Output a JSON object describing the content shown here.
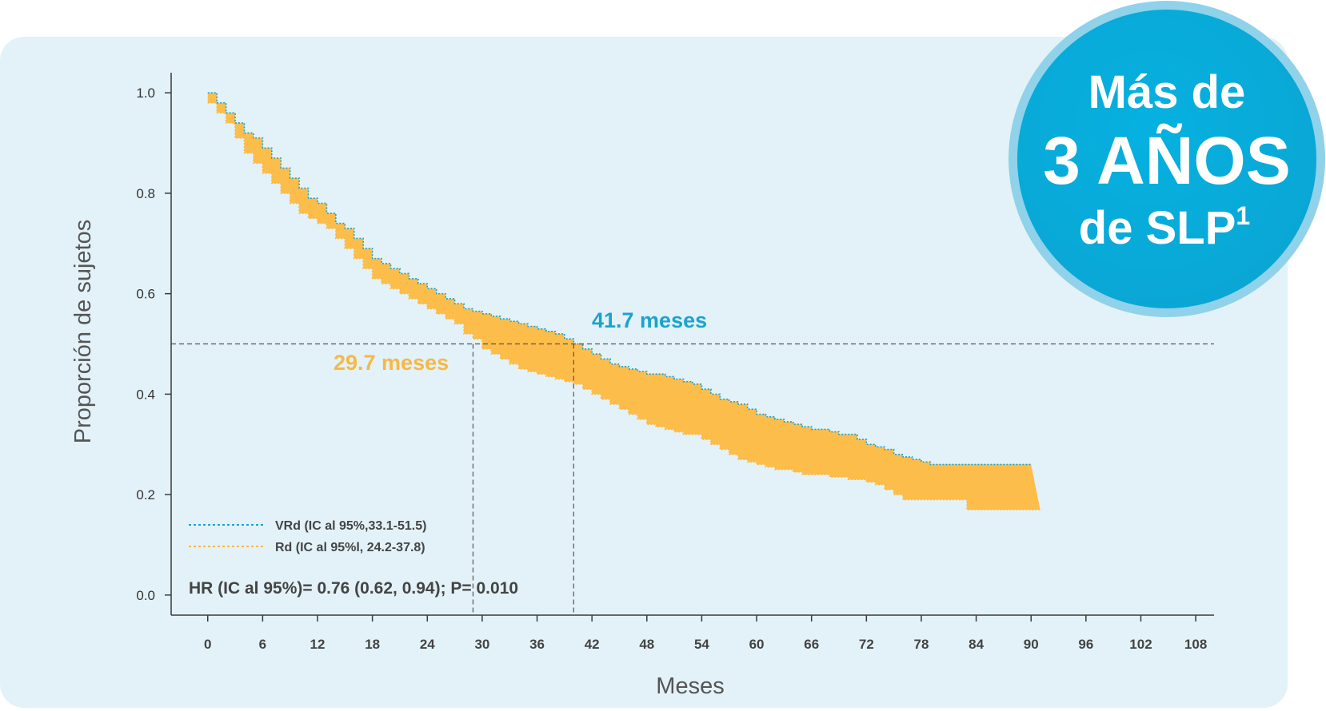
{
  "chart_data": {
    "type": "line",
    "title": "",
    "xlabel": "Meses",
    "ylabel": "Proporción de sujetos",
    "xlim": [
      -4,
      110
    ],
    "ylim": [
      -0.04,
      1.04
    ],
    "x_ticks": [
      0,
      6,
      12,
      18,
      24,
      30,
      36,
      42,
      48,
      54,
      60,
      66,
      72,
      78,
      84,
      90,
      96,
      102,
      108
    ],
    "y_ticks": [
      "0.0",
      "0.2",
      "0.4",
      "0.6",
      "0.8",
      "1.0"
    ],
    "series": [
      {
        "name": "VRd (IC al 95%,33.1-51.5)",
        "color": "#1aa3cf",
        "style": "dotted",
        "x": [
          0,
          1,
          2,
          3,
          4,
          5,
          6,
          7,
          8,
          9,
          10,
          11,
          12,
          13,
          14,
          15,
          16,
          17,
          18,
          19,
          20,
          21,
          22,
          23,
          24,
          25,
          26,
          27,
          28,
          29,
          30,
          31,
          32,
          33,
          34,
          35,
          36,
          37,
          38,
          39,
          40,
          41,
          42,
          43,
          44,
          45,
          46,
          47,
          48,
          49,
          50,
          51,
          52,
          53,
          54,
          55,
          56,
          57,
          58,
          59,
          60,
          61,
          62,
          63,
          64,
          65,
          66,
          67,
          68,
          69,
          70,
          71,
          72,
          73,
          74,
          75,
          76,
          77,
          78,
          79,
          80,
          81,
          82,
          83,
          84,
          85,
          86,
          87,
          88,
          89,
          90
        ],
        "y": [
          1.0,
          0.98,
          0.96,
          0.94,
          0.92,
          0.91,
          0.89,
          0.87,
          0.85,
          0.83,
          0.81,
          0.79,
          0.78,
          0.76,
          0.74,
          0.73,
          0.71,
          0.69,
          0.67,
          0.66,
          0.65,
          0.64,
          0.63,
          0.62,
          0.61,
          0.6,
          0.59,
          0.58,
          0.57,
          0.565,
          0.56,
          0.555,
          0.55,
          0.545,
          0.54,
          0.535,
          0.53,
          0.525,
          0.52,
          0.51,
          0.5,
          0.49,
          0.48,
          0.47,
          0.46,
          0.455,
          0.45,
          0.445,
          0.44,
          0.44,
          0.435,
          0.43,
          0.425,
          0.42,
          0.41,
          0.4,
          0.39,
          0.385,
          0.38,
          0.37,
          0.36,
          0.355,
          0.35,
          0.345,
          0.34,
          0.335,
          0.33,
          0.33,
          0.325,
          0.32,
          0.32,
          0.31,
          0.3,
          0.295,
          0.29,
          0.28,
          0.275,
          0.27,
          0.265,
          0.26,
          0.26,
          0.26,
          0.26,
          0.26,
          0.26,
          0.26,
          0.26,
          0.26,
          0.26,
          0.26,
          0.26
        ]
      },
      {
        "name": "Rd (IC al 95%l, 24.2-37.8)",
        "color": "#f8b843",
        "style": "dotted",
        "x": [
          0,
          1,
          2,
          3,
          4,
          5,
          6,
          7,
          8,
          9,
          10,
          11,
          12,
          13,
          14,
          15,
          16,
          17,
          18,
          19,
          20,
          21,
          22,
          23,
          24,
          25,
          26,
          27,
          28,
          29,
          30,
          31,
          32,
          33,
          34,
          35,
          36,
          37,
          38,
          39,
          40,
          41,
          42,
          43,
          44,
          45,
          46,
          47,
          48,
          49,
          50,
          51,
          52,
          53,
          54,
          55,
          56,
          57,
          58,
          59,
          60,
          61,
          62,
          63,
          64,
          65,
          66,
          67,
          68,
          69,
          70,
          71,
          72,
          73,
          74,
          75,
          76,
          77,
          78,
          79,
          80,
          81,
          82,
          83,
          84,
          85,
          86,
          87,
          88,
          89,
          90,
          91
        ],
        "y": [
          0.98,
          0.96,
          0.94,
          0.91,
          0.88,
          0.86,
          0.84,
          0.82,
          0.8,
          0.78,
          0.76,
          0.75,
          0.74,
          0.73,
          0.71,
          0.69,
          0.67,
          0.65,
          0.63,
          0.62,
          0.61,
          0.6,
          0.59,
          0.58,
          0.57,
          0.56,
          0.55,
          0.54,
          0.52,
          0.51,
          0.49,
          0.48,
          0.47,
          0.46,
          0.45,
          0.445,
          0.44,
          0.435,
          0.43,
          0.425,
          0.42,
          0.41,
          0.4,
          0.39,
          0.38,
          0.37,
          0.36,
          0.35,
          0.34,
          0.335,
          0.33,
          0.325,
          0.32,
          0.32,
          0.31,
          0.3,
          0.29,
          0.28,
          0.27,
          0.265,
          0.26,
          0.255,
          0.25,
          0.25,
          0.245,
          0.24,
          0.24,
          0.24,
          0.235,
          0.235,
          0.23,
          0.23,
          0.225,
          0.22,
          0.21,
          0.2,
          0.19,
          0.19,
          0.19,
          0.19,
          0.19,
          0.19,
          0.19,
          0.17,
          0.17,
          0.17,
          0.17,
          0.17,
          0.17,
          0.17,
          0.17,
          0.17
        ]
      }
    ],
    "median_line_y": 0.5,
    "medians": [
      {
        "label": "41.7 meses",
        "x": 40,
        "color": "#1aa3cf"
      },
      {
        "label": "29.7 meses",
        "x": 29,
        "color": "#f8b843"
      }
    ],
    "legend_placement": "bottom-left",
    "grid": false
  },
  "stats_text": "HR (IC al 95%)= 0.76 (0.62, 0.94); P= 0.010",
  "badge": {
    "line1": "Más de",
    "line2": "3 AÑOS",
    "line3": "de SLP",
    "superscript": "1",
    "color": "#0fb2e0"
  }
}
